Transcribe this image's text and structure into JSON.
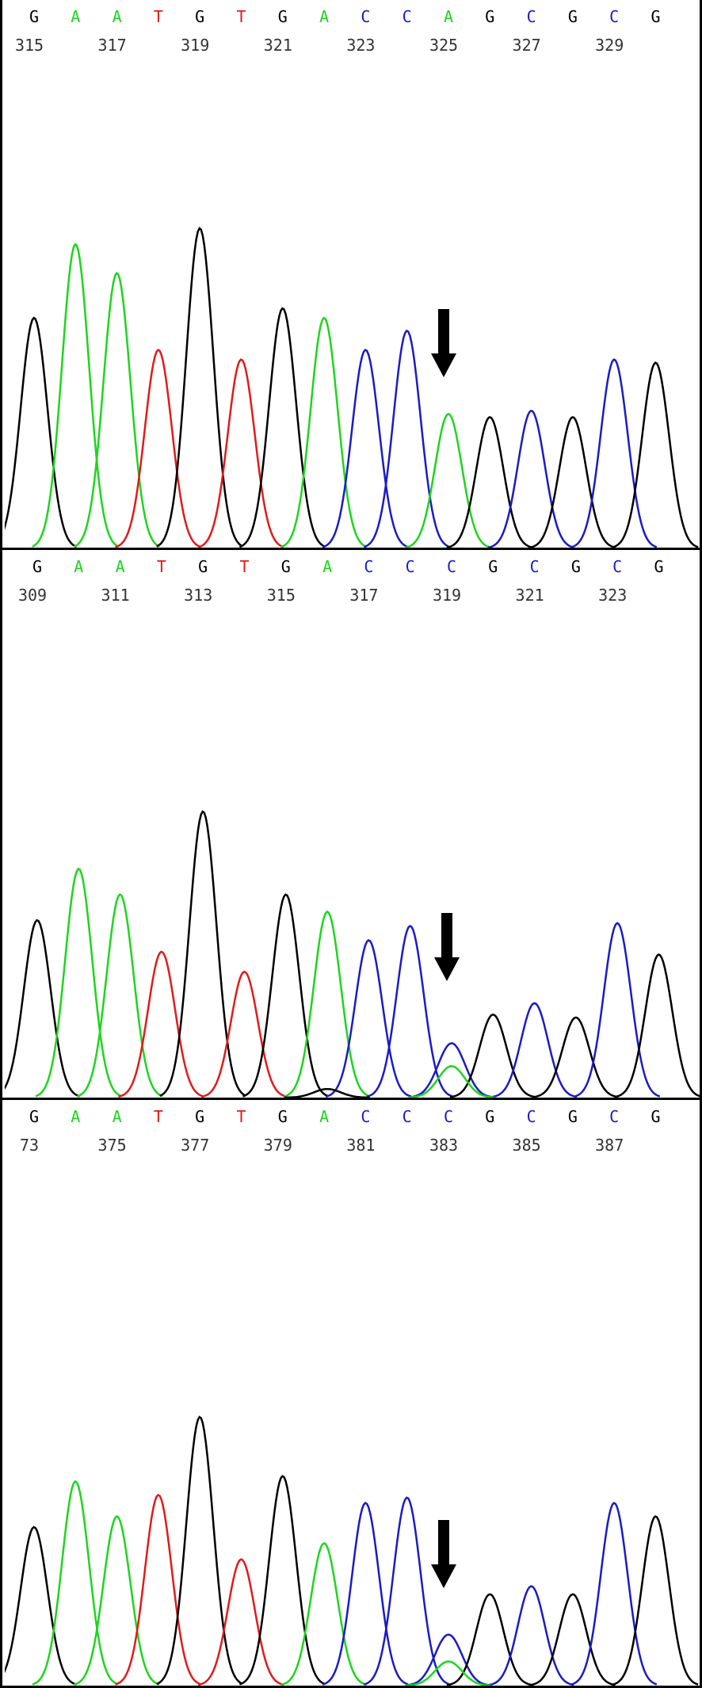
{
  "colors": {
    "G": "#000000",
    "A": "#1ed51e",
    "T": "#e01b1b",
    "C": "#1b1bc6",
    "position": "#333333",
    "arrow": "#000000"
  },
  "chart_data": [
    {
      "type": "line",
      "bases": [
        "G",
        "A",
        "A",
        "T",
        "G",
        "T",
        "G",
        "A",
        "C",
        "C",
        "A",
        "G",
        "C",
        "G",
        "C",
        "G"
      ],
      "positions": [
        "315",
        "317",
        "319",
        "321",
        "323",
        "325",
        "327",
        "329"
      ],
      "marked_base_index": 10,
      "peaks": [
        {
          "base": "G",
          "height": 0.72
        },
        {
          "base": "A",
          "height": 0.95
        },
        {
          "base": "A",
          "height": 0.86
        },
        {
          "base": "T",
          "height": 0.62
        },
        {
          "base": "G",
          "height": 1.0
        },
        {
          "base": "T",
          "height": 0.59
        },
        {
          "base": "G",
          "height": 0.75
        },
        {
          "base": "A",
          "height": 0.72
        },
        {
          "base": "C",
          "height": 0.62
        },
        {
          "base": "C",
          "height": 0.68
        },
        {
          "base": "A",
          "height": 0.42
        },
        {
          "base": "G",
          "height": 0.41
        },
        {
          "base": "C",
          "height": 0.43
        },
        {
          "base": "G",
          "height": 0.41
        },
        {
          "base": "C",
          "height": 0.59
        },
        {
          "base": "G",
          "height": 0.58
        }
      ]
    },
    {
      "type": "line",
      "bases": [
        "G",
        "A",
        "A",
        "T",
        "G",
        "T",
        "G",
        "A",
        "C",
        "C",
        "C",
        "G",
        "C",
        "G",
        "C",
        "G"
      ],
      "positions": [
        "309",
        "311",
        "313",
        "315",
        "317",
        "319",
        "321",
        "323"
      ],
      "marked_base_index": 10,
      "peaks": [
        {
          "base": "G",
          "height": 0.62
        },
        {
          "base": "A",
          "height": 0.8
        },
        {
          "base": "A",
          "height": 0.71
        },
        {
          "base": "T",
          "height": 0.51
        },
        {
          "base": "G",
          "height": 1.0
        },
        {
          "base": "T",
          "height": 0.44
        },
        {
          "base": "G",
          "height": 0.71
        },
        {
          "base": "A",
          "height": 0.65
        },
        {
          "base": "C",
          "height": 0.55
        },
        {
          "base": "C",
          "height": 0.6
        },
        {
          "base": "C",
          "height": 0.19
        },
        {
          "base": "G",
          "height": 0.29
        },
        {
          "base": "C",
          "height": 0.33
        },
        {
          "base": "G",
          "height": 0.28
        },
        {
          "base": "C",
          "height": 0.61
        },
        {
          "base": "G",
          "height": 0.5
        }
      ],
      "secondary_peaks": [
        {
          "base": "A",
          "index": 10,
          "height": 0.11
        },
        {
          "base": "G",
          "index": 7,
          "height": 0.03
        }
      ]
    },
    {
      "type": "line",
      "bases": [
        "G",
        "A",
        "A",
        "T",
        "G",
        "T",
        "G",
        "A",
        "C",
        "C",
        "C",
        "G",
        "C",
        "G",
        "C",
        "G"
      ],
      "positions": [
        "73",
        "375",
        "377",
        "379",
        "381",
        "383",
        "385",
        "387"
      ],
      "marked_base_index": 10,
      "peaks": [
        {
          "base": "G",
          "height": 0.59
        },
        {
          "base": "A",
          "height": 0.76
        },
        {
          "base": "A",
          "height": 0.63
        },
        {
          "base": "T",
          "height": 0.71
        },
        {
          "base": "G",
          "height": 1.0
        },
        {
          "base": "T",
          "height": 0.47
        },
        {
          "base": "G",
          "height": 0.78
        },
        {
          "base": "A",
          "height": 0.53
        },
        {
          "base": "C",
          "height": 0.68
        },
        {
          "base": "C",
          "height": 0.7
        },
        {
          "base": "C",
          "height": 0.19
        },
        {
          "base": "G",
          "height": 0.34
        },
        {
          "base": "C",
          "height": 0.37
        },
        {
          "base": "G",
          "height": 0.34
        },
        {
          "base": "C",
          "height": 0.68
        },
        {
          "base": "G",
          "height": 0.63
        }
      ],
      "secondary_peaks": [
        {
          "base": "A",
          "index": 10,
          "height": 0.09
        }
      ]
    }
  ]
}
